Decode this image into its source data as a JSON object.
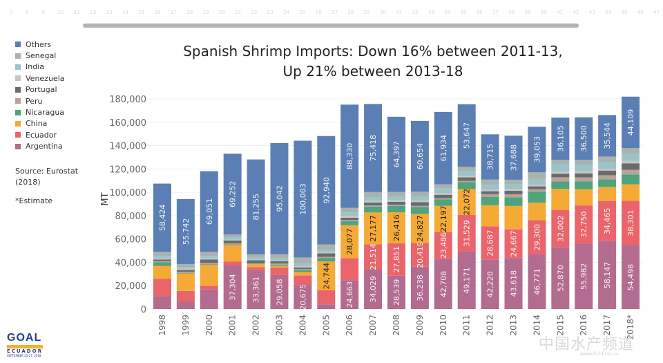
{
  "ruler": {
    "ticks": [
      "7",
      "8",
      "9",
      "10",
      "11",
      "12",
      "13",
      "14",
      "15",
      "16",
      "17",
      "18",
      "19",
      "20",
      "21",
      "22",
      "23",
      "24",
      "25",
      "26",
      "27",
      "28",
      "29",
      "30",
      "31",
      "32",
      "33",
      "34",
      "35",
      "36",
      "37",
      "38",
      "39",
      "40",
      "41",
      "42",
      "43",
      "44",
      "45",
      "46",
      "47"
    ]
  },
  "legend": [
    {
      "name": "Others",
      "color": "#5b7fb5"
    },
    {
      "name": "Senegal",
      "color": "#a9b2ae"
    },
    {
      "name": "India",
      "color": "#9cc3c8"
    },
    {
      "name": "Venezuela",
      "color": "#c6c6c6"
    },
    {
      "name": "Portugal",
      "color": "#6b6b6b"
    },
    {
      "name": "Peru",
      "color": "#b8a29a"
    },
    {
      "name": "Nicaragua",
      "color": "#4fa37d"
    },
    {
      "name": "China",
      "color": "#f5aa35"
    },
    {
      "name": "Ecuador",
      "color": "#e9656b"
    },
    {
      "name": "Argentina",
      "color": "#b36b8f"
    }
  ],
  "source": "Source: Eurostat (2018)",
  "estimate_note": "*Estimate",
  "logo": {
    "name": "GOAL",
    "band": "GUAYAQUIL",
    "country": "ECUADOR",
    "date": "SEPTEMBER 25-27, 2018"
  },
  "watermark": {
    "text": "中国水产频道",
    "url": "www.fishfirst.cn"
  },
  "chart_data": {
    "type": "bar",
    "stacked": true,
    "title": "Spanish Shrimp Imports: Down 16% between 2011-13,",
    "subtitle": "Up 21% between 2013-18",
    "xlabel": "",
    "ylabel": "MT",
    "ylim": [
      0,
      180000
    ],
    "yticks": [
      0,
      20000,
      40000,
      60000,
      80000,
      100000,
      120000,
      140000,
      160000,
      180000
    ],
    "ytick_labels": [
      "0",
      "20,000",
      "40,000",
      "60,000",
      "80,000",
      "100,000",
      "120,000",
      "140,000",
      "160,000",
      "180,000"
    ],
    "grid": true,
    "legend_position": "left",
    "categories": [
      "1998",
      "1999",
      "2000",
      "2001",
      "2002",
      "2003",
      "2004",
      "2005",
      "2006",
      "2007",
      "2008",
      "2009",
      "2010",
      "2011",
      "2012",
      "2013",
      "2014",
      "2015",
      "2016",
      "2017",
      "2018*"
    ],
    "series": [
      {
        "name": "Argentina",
        "color": "#b36b8f",
        "values": [
          11000,
          6500,
          17000,
          37304,
          33361,
          29058,
          20675,
          4000,
          24663,
          34029,
          28539,
          36238,
          42708,
          49171,
          42220,
          43618,
          46771,
          52870,
          55982,
          58147,
          54498
        ],
        "labels": [
          "",
          "",
          "",
          "37,304",
          "33,361",
          "29,058",
          "20,675",
          "",
          "24,663",
          "34,029",
          "28,539",
          "36,238",
          "42,708",
          "49,171",
          "42,220",
          "43,618",
          "46,771",
          "52,870",
          "55,982",
          "58,147",
          "54,498"
        ]
      },
      {
        "name": "Ecuador",
        "color": "#e9656b",
        "values": [
          15000,
          9000,
          3000,
          3500,
          2500,
          6500,
          8000,
          12000,
          19000,
          21514,
          27851,
          20419,
          23486,
          31529,
          28687,
          24667,
          29300,
          32002,
          32750,
          34465,
          38301
        ],
        "labels": [
          "",
          "",
          "",
          "",
          "",
          "",
          "",
          "",
          "",
          "21,514",
          "27,851",
          "20,419",
          "23,486",
          "31,529",
          "28,687",
          "24,667",
          "29,300",
          "32,002",
          "32,750",
          "34,465",
          "38,301"
        ]
      },
      {
        "name": "China",
        "color": "#f5aa35",
        "values": [
          11000,
          15000,
          18000,
          14000,
          2500,
          1500,
          3000,
          24744,
          28077,
          27177,
          26416,
          24827,
          22197,
          22072,
          18000,
          20000,
          15000,
          18000,
          14000,
          12000,
          14000
        ],
        "labels": [
          "",
          "",
          "",
          "",
          "",
          "",
          "",
          "24,744",
          "28,077",
          "27,177",
          "26,416",
          "24,827",
          "22,197",
          "22,072",
          "",
          "",
          "",
          "",
          "",
          "",
          ""
        ]
      },
      {
        "name": "Nicaragua",
        "color": "#4fa37d",
        "values": [
          3000,
          500,
          500,
          500,
          500,
          1000,
          1500,
          3000,
          3500,
          5000,
          5500,
          6000,
          5500,
          6000,
          7000,
          7500,
          9500,
          6500,
          6500,
          6500,
          8500
        ]
      },
      {
        "name": "Peru",
        "color": "#b8a29a",
        "values": [
          1000,
          1000,
          1000,
          1000,
          500,
          1000,
          1000,
          1000,
          1000,
          1000,
          1000,
          1000,
          1000,
          1000,
          2500,
          2500,
          2000,
          3500,
          3500,
          3500,
          4000
        ]
      },
      {
        "name": "Portugal",
        "color": "#6b6b6b",
        "values": [
          1500,
          1500,
          3000,
          2500,
          2500,
          2000,
          1500,
          3000,
          2000,
          2500,
          2500,
          3000,
          3000,
          3000,
          2500,
          3000,
          2500,
          3000,
          3500,
          4000,
          5500
        ]
      },
      {
        "name": "Venezuela",
        "color": "#c6c6c6",
        "values": [
          1000,
          1000,
          1000,
          500,
          500,
          500,
          1000,
          1000,
          1500,
          1500,
          1500,
          1500,
          1500,
          1500,
          1500,
          1500,
          1500,
          2000,
          1500,
          1500,
          2000
        ]
      },
      {
        "name": "India",
        "color": "#9cc3c8",
        "values": [
          2000,
          1500,
          2000,
          2000,
          2000,
          2000,
          2500,
          2000,
          3000,
          3500,
          3500,
          3500,
          4000,
          4000,
          4000,
          4000,
          5000,
          6000,
          6000,
          6000,
          6000
        ]
      },
      {
        "name": "Senegal",
        "color": "#a9b2ae",
        "values": [
          3500,
          2500,
          3500,
          2500,
          2500,
          3500,
          5000,
          4500,
          4000,
          4000,
          3500,
          4000,
          3500,
          3500,
          4500,
          4000,
          5500,
          4000,
          4000,
          4500,
          5000
        ]
      },
      {
        "name": "Others",
        "color": "#5b7fb5",
        "values": [
          58424,
          55742,
          69051,
          69252,
          81255,
          95042,
          100003,
          92940,
          88330,
          75418,
          64397,
          60654,
          61934,
          53647,
          38715,
          37688,
          39053,
          36105,
          36500,
          35544,
          44109
        ],
        "labels": [
          "58,424",
          "55,742",
          "69,051",
          "69,252",
          "81,255",
          "95,042",
          "100,003",
          "92,940",
          "88,330",
          "75,418",
          "64,397",
          "60,654",
          "61,934",
          "53,647",
          "38,715",
          "37,688",
          "39,053",
          "36,105",
          "36,500",
          "35,544",
          "44,109"
        ]
      }
    ]
  }
}
